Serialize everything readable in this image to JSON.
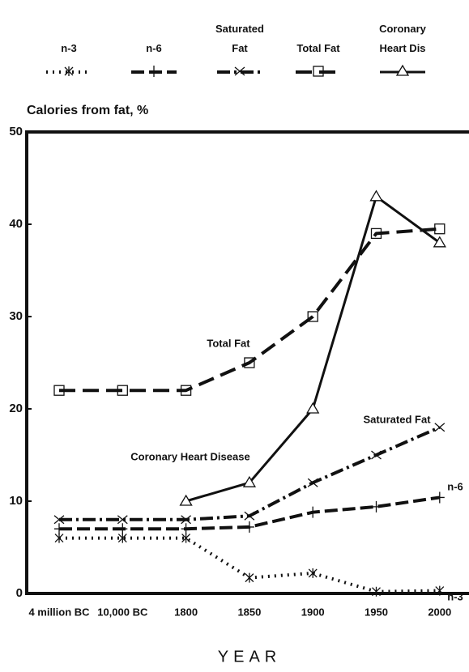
{
  "chart_data": {
    "type": "line",
    "ylabel": "Calories from fat, %",
    "xlabel": "YEAR",
    "categories": [
      "4 million BC",
      "10,000 BC",
      "1800",
      "1850",
      "1900",
      "1950",
      "2000"
    ],
    "series": [
      {
        "name": "n-3",
        "color": "#111111",
        "marker": "asterisk",
        "values": [
          6,
          6,
          6,
          1.7,
          2.2,
          0.2,
          0.3
        ]
      },
      {
        "name": "n-6",
        "color": "#111111",
        "marker": "plus",
        "values": [
          7,
          7,
          7,
          7.2,
          8.8,
          9.4,
          10.4
        ]
      },
      {
        "name": "Saturated Fat",
        "color": "#111111",
        "marker": "x",
        "values": [
          8,
          8,
          8,
          8.4,
          12,
          15,
          18
        ]
      },
      {
        "name": "Total Fat",
        "color": "#111111",
        "marker": "square",
        "values": [
          22,
          22,
          22,
          25,
          30,
          39,
          39.5
        ]
      },
      {
        "name": "Coronary Heart Dis",
        "color": "#111111",
        "marker": "triangle",
        "values": [
          null,
          null,
          10,
          12,
          20,
          43,
          38
        ]
      }
    ],
    "annotations": [
      "Total Fat",
      "Saturated Fat",
      "Coronary Heart Disease",
      "n-6",
      "n-3"
    ],
    "ylim": [
      0,
      50
    ],
    "yticks": [
      0,
      10,
      20,
      30,
      40,
      50
    ]
  }
}
